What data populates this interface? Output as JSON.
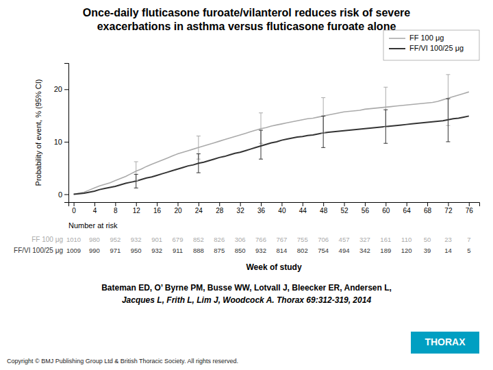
{
  "chart_data": {
    "type": "line",
    "title": [
      "Once-daily fluticasone furoate/vilanterol reduces risk of severe",
      "exacerbations in asthma versus fluticasone furoate alone"
    ],
    "x_label": "Week of study",
    "y_label": "Probability of event, % (95% CI)",
    "xlim": [
      -1,
      78
    ],
    "ylim": [
      -1.5,
      25
    ],
    "xticks": [
      0,
      4,
      8,
      12,
      16,
      20,
      24,
      28,
      32,
      36,
      40,
      44,
      48,
      52,
      56,
      60,
      64,
      68,
      72,
      76
    ],
    "yticks": [
      0,
      10,
      20
    ],
    "grid": false,
    "legend": "upper right",
    "x": [
      0,
      1,
      2,
      3,
      4,
      5,
      6,
      7,
      8,
      9,
      10,
      11,
      12,
      13,
      14,
      15,
      16,
      17,
      18,
      19,
      20,
      21,
      22,
      23,
      24,
      25,
      26,
      27,
      28,
      29,
      30,
      31,
      32,
      33,
      34,
      35,
      36,
      37,
      38,
      39,
      40,
      41,
      42,
      43,
      44,
      45,
      46,
      47,
      48,
      49,
      50,
      51,
      52,
      53,
      54,
      55,
      56,
      57,
      58,
      59,
      60,
      61,
      62,
      63,
      64,
      65,
      66,
      67,
      68,
      69,
      70,
      71,
      72,
      73,
      74,
      75,
      76
    ],
    "series": [
      {
        "name": "FF 100 μg",
        "color": "#aaaaaa",
        "values": [
          0,
          0.2,
          0.4,
          0.8,
          1.2,
          1.6,
          1.9,
          2.2,
          2.6,
          3.0,
          3.4,
          3.9,
          4.4,
          4.8,
          5.3,
          5.7,
          6.1,
          6.5,
          6.9,
          7.3,
          7.7,
          8.0,
          8.3,
          8.6,
          8.9,
          9.2,
          9.5,
          9.8,
          10.1,
          10.4,
          10.7,
          11.0,
          11.3,
          11.6,
          11.9,
          12.2,
          12.5,
          12.7,
          13.0,
          13.2,
          13.4,
          13.6,
          13.8,
          14.0,
          14.2,
          14.4,
          14.5,
          14.7,
          14.9,
          15.1,
          15.3,
          15.5,
          15.7,
          15.8,
          15.9,
          16.0,
          16.2,
          16.3,
          16.4,
          16.5,
          16.6,
          16.7,
          16.8,
          16.9,
          17.0,
          17.1,
          17.2,
          17.3,
          17.4,
          17.5,
          17.7,
          18.0,
          18.3,
          18.6,
          18.9,
          19.2,
          19.5
        ],
        "errors": {
          "x": [
            12,
            24,
            36,
            48,
            60,
            72
          ],
          "y": [
            4.4,
            8.9,
            12.5,
            14.9,
            16.6,
            18.3
          ],
          "minus": [
            1.8,
            2.2,
            2.8,
            3.2,
            3.8,
            5.2
          ],
          "plus": [
            1.8,
            2.2,
            3.0,
            3.5,
            3.8,
            4.5
          ]
        },
        "at_risk": [
          1010,
          980,
          952,
          932,
          901,
          679,
          852,
          826,
          306,
          766,
          767,
          755,
          706,
          457,
          327,
          161,
          110,
          50,
          23,
          7
        ]
      },
      {
        "name": "FF/VI 100/25 μg",
        "color": "#333333",
        "values": [
          0,
          0.1,
          0.2,
          0.4,
          0.6,
          0.9,
          1.1,
          1.3,
          1.5,
          1.8,
          2.1,
          2.3,
          2.5,
          2.8,
          3.1,
          3.3,
          3.6,
          3.9,
          4.2,
          4.5,
          4.8,
          5.1,
          5.4,
          5.6,
          5.9,
          6.1,
          6.4,
          6.7,
          7.0,
          7.2,
          7.5,
          7.8,
          8.0,
          8.3,
          8.6,
          8.9,
          9.2,
          9.5,
          9.8,
          10.0,
          10.3,
          10.5,
          10.7,
          10.9,
          11.0,
          11.2,
          11.3,
          11.5,
          11.7,
          11.8,
          11.9,
          12.0,
          12.1,
          12.2,
          12.3,
          12.4,
          12.5,
          12.6,
          12.7,
          12.8,
          12.9,
          13.0,
          13.1,
          13.2,
          13.3,
          13.4,
          13.5,
          13.6,
          13.7,
          13.8,
          13.9,
          14.0,
          14.2,
          14.4,
          14.5,
          14.7,
          14.9
        ],
        "errors": {
          "x": [
            12,
            24,
            36,
            48,
            60,
            72
          ],
          "y": [
            2.5,
            5.9,
            9.2,
            11.7,
            12.9,
            14.2
          ],
          "minus": [
            1.3,
            1.8,
            2.5,
            2.8,
            3.2,
            4.2
          ],
          "plus": [
            1.3,
            1.8,
            3.0,
            3.2,
            3.2,
            4.0
          ]
        },
        "at_risk": [
          1009,
          990,
          971,
          950,
          932,
          911,
          888,
          875,
          850,
          932,
          814,
          802,
          754,
          494,
          342,
          189,
          120,
          39,
          14,
          5
        ]
      }
    ],
    "annotations": [
      {
        "text": "Number at risk"
      },
      {
        "text": "Bateman ED, O’ Byrne PM, Busse WW, Lotvall J, Bleecker ER, Andersen L,"
      },
      {
        "text": "Jacques L, Frith L, Lim J, Woodcock A. Thorax 69:312-319, 2014"
      },
      {
        "text": "Copyright © BMJ Publishing Group Ltd & British Thoracic Society. All rights reserved."
      },
      {
        "text": "THORAX",
        "color": "#009FC2"
      }
    ]
  }
}
